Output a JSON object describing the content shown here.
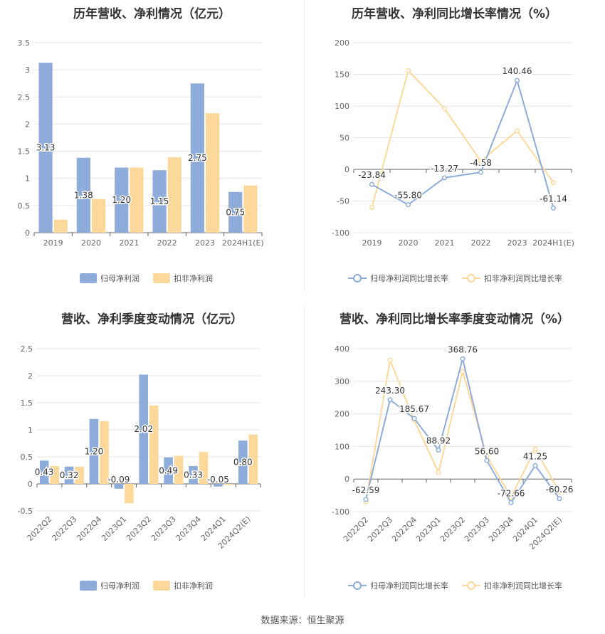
{
  "colors": {
    "primary": "#8eacd9",
    "secondary": "#fcd99a",
    "grid": "#e6e6e6",
    "axis": "#999999",
    "label": "#333333"
  },
  "source": {
    "label": "数据来源：",
    "name": "恒生聚源"
  },
  "chart_data": [
    {
      "id": "annual-values",
      "type": "bar",
      "title": "历年营收、净利情况（亿元）",
      "categories": [
        "2019",
        "2020",
        "2021",
        "2022",
        "2023",
        "2024H1(E)"
      ],
      "series": [
        {
          "name": "归母净利润",
          "values": [
            3.13,
            1.38,
            1.2,
            1.15,
            2.75,
            0.75
          ],
          "labels": [
            "3.13",
            "1.38",
            "1.20",
            "1.15",
            "2.75",
            "0.75"
          ]
        },
        {
          "name": "扣非净利润",
          "values": [
            0.24,
            0.62,
            1.2,
            1.39,
            2.2,
            0.87
          ]
        }
      ],
      "ylim": [
        0,
        3.5
      ],
      "yticks": [
        "0",
        "0.5",
        "1",
        "1.5",
        "2",
        "2.5",
        "3",
        "3.5"
      ],
      "legend": "bottom"
    },
    {
      "id": "annual-growth",
      "type": "line",
      "title": "历年营收、净利同比增长率情况（%）",
      "categories": [
        "2019",
        "2020",
        "2021",
        "2022",
        "2023",
        "2024H1(E)"
      ],
      "series": [
        {
          "name": "归母净利润同比增长率",
          "values": [
            -23.84,
            -55.8,
            -13.27,
            -4.58,
            140.46,
            -61.14
          ],
          "labels": [
            "-23.84",
            "-55.80",
            "-13.27",
            "-4.58",
            "140.46",
            "-61.14"
          ]
        },
        {
          "name": "扣非净利润同比增长率",
          "values": [
            -60,
            156,
            96,
            13,
            61,
            -21
          ]
        }
      ],
      "ylim": [
        -100,
        200
      ],
      "yticks": [
        "-100",
        "-50",
        "0",
        "50",
        "100",
        "150",
        "200"
      ],
      "legend": "bottom"
    },
    {
      "id": "quarterly-values",
      "type": "bar",
      "title": "营收、净利季度变动情况（亿元）",
      "categories": [
        "2022Q2",
        "2022Q3",
        "2022Q4",
        "2023Q1",
        "2023Q2",
        "2023Q3",
        "2023Q4",
        "2024Q1",
        "2024Q2(E)"
      ],
      "series": [
        {
          "name": "归母净利润",
          "values": [
            0.43,
            0.32,
            1.2,
            -0.09,
            2.02,
            0.49,
            0.33,
            -0.05,
            0.8
          ],
          "labels": [
            "0.43",
            "0.32",
            "1.20",
            "-0.09",
            "2.02",
            "0.49",
            "0.33",
            "-0.05",
            "0.80"
          ]
        },
        {
          "name": "扣非净利润",
          "values": [
            0.33,
            0.32,
            1.16,
            -0.36,
            1.45,
            0.52,
            0.59,
            -0.02,
            0.91
          ]
        }
      ],
      "ylim": [
        -0.5,
        2.5
      ],
      "yticks": [
        "-0.5",
        "0",
        "0.5",
        "1",
        "1.5",
        "2",
        "2.5"
      ],
      "legend": "bottom"
    },
    {
      "id": "quarterly-growth",
      "type": "line",
      "title": "营收、净利同比增长率季度变动情况（%）",
      "categories": [
        "2022Q2",
        "2022Q3",
        "2022Q4",
        "2023Q1",
        "2023Q2",
        "2023Q3",
        "2023Q4",
        "2024Q1",
        "2024Q2(E)"
      ],
      "series": [
        {
          "name": "归母净利润同比增长率",
          "values": [
            -62.59,
            243.3,
            185.67,
            88.92,
            368.76,
            56.6,
            -72.66,
            41.25,
            -60.26
          ],
          "labels": [
            "-62.59",
            "243.30",
            "185.67",
            "88.92",
            "368.76",
            "56.60",
            "-72.66",
            "41.25",
            "-60.26"
          ]
        },
        {
          "name": "扣非净利润同比增长率",
          "values": [
            -70,
            365,
            180,
            20,
            330,
            70,
            -55,
            92,
            -40
          ]
        }
      ],
      "ylim": [
        -100,
        400
      ],
      "yticks": [
        "-100",
        "0",
        "100",
        "200",
        "300",
        "400"
      ],
      "legend": "bottom"
    }
  ]
}
